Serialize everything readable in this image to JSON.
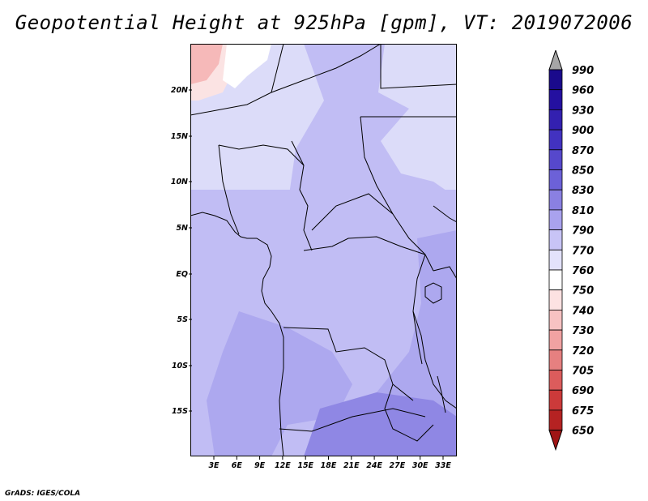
{
  "title": "Geopotential Height at 925hPa [gpm], VT: 2019072006",
  "credit": "GrADS: IGES/COLA",
  "map": {
    "lat_labels": [
      "20N",
      "15N",
      "10N",
      "5N",
      "EQ",
      "5S",
      "10S",
      "15S"
    ],
    "lon_labels": [
      "3E",
      "6E",
      "9E",
      "12E",
      "15E",
      "18E",
      "21E",
      "24E",
      "27E",
      "30E",
      "33E"
    ],
    "fill_colors": {
      "hot_northwest": "#f6b9b9",
      "warm_north": "#fbe3e3",
      "sahel": "#dcdcf9",
      "central": "#c1bdf4",
      "south_mid": "#ada8ef",
      "south_deep": "#8f87e4"
    }
  },
  "colorbar": {
    "levels": [
      "990",
      "960",
      "930",
      "900",
      "870",
      "850",
      "830",
      "810",
      "790",
      "770",
      "760",
      "750",
      "740",
      "730",
      "720",
      "705",
      "690",
      "675",
      "650"
    ],
    "colors": [
      "#1a0a8c",
      "#2410a0",
      "#3320b0",
      "#4232c0",
      "#5648cc",
      "#6c61d8",
      "#8a80e2",
      "#a9a2ee",
      "#c8c4f6",
      "#e3e2fb",
      "#ffffff",
      "#fde2e2",
      "#f7c2c2",
      "#f1a2a2",
      "#e68080",
      "#dc5c5c",
      "#cc3a3a",
      "#b52222",
      "#a01515"
    ],
    "top_arrow_color": "#a6a6a6",
    "bottom_arrow_color": "#a01515"
  }
}
